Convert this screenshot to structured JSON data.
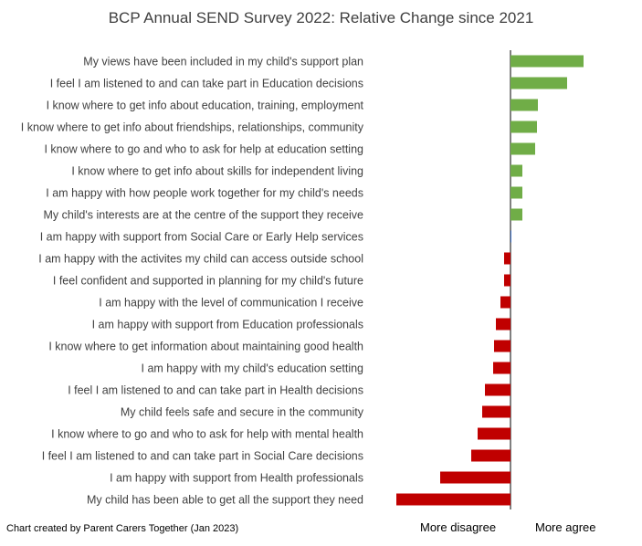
{
  "chart_data": {
    "type": "bar",
    "orientation": "horizontal",
    "title": "BCP Annual SEND Survey 2022: Relative Change since 2021",
    "categories": [
      "My views have been included in my child's support plan",
      "I feel I am listened to and can take part in Education decisions",
      "I know where to get info about education, training, employment",
      "I know where to get info about friendships, relationships, community",
      "I know where to go and who to ask for help at education setting",
      "I know where to get info about skills for independent living",
      "I am happy with how people work together for my child's needs",
      "My child's interests are at the centre of the support they receive",
      "I am happy with support from Social Care or Early Help services",
      "I am happy with the activites my child can access outside school",
      "I feel confident and supported in planning for my child's future",
      "I am happy with the level of communication I receive",
      "I am happy with support from Education professionals",
      "I know where to get information about maintaining good health",
      "I am happy with my child's education setting",
      "I feel I am listened to and can take part in Health decisions",
      "My child feels safe and secure in the community",
      "I know where to go and who to ask for help with mental health",
      "I feel I am listened to and can take part in Social Care decisions",
      "I am happy with support from Health professionals",
      "My child has been able to get all the support they need"
    ],
    "values": [
      80,
      62,
      30,
      29,
      27,
      13,
      13,
      13,
      0.5,
      -7,
      -7,
      -11,
      -16,
      -18,
      -19,
      -28,
      -31,
      -36,
      -43,
      -77,
      -125
    ],
    "xlim": [
      -125,
      85
    ],
    "axis_captions": {
      "negative": "More disagree",
      "positive": "More agree"
    },
    "colors": {
      "positive": "#70ad47",
      "negative": "#c00000",
      "near_zero": "#4472c4",
      "axis": "#000000"
    },
    "grid": false,
    "legend": "none"
  },
  "credit": "Chart created by Parent Carers Together (Jan 2023)"
}
